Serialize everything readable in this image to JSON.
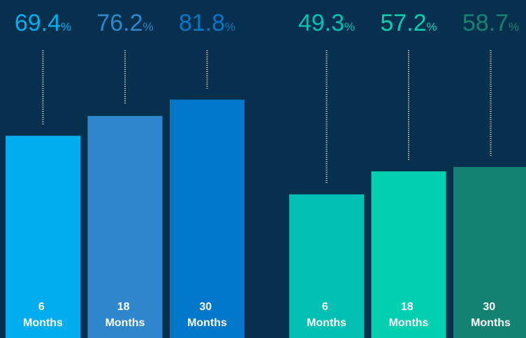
{
  "chart_data": [
    {
      "type": "bar",
      "categories": [
        "6 Months",
        "18 Months",
        "30 Months"
      ],
      "values": [
        69.4,
        76.2,
        81.8
      ],
      "value_labels": [
        "69.4%",
        "76.2%",
        "81.8%"
      ],
      "colors": [
        "#00aeef",
        "#2e87cc",
        "#0077c8"
      ],
      "ylim": [
        0,
        116
      ]
    },
    {
      "type": "bar",
      "categories": [
        "6 Months",
        "18 Months",
        "30 Months"
      ],
      "values": [
        49.3,
        57.2,
        58.7
      ],
      "value_labels": [
        "49.3%",
        "57.2%",
        "58.7%"
      ],
      "colors": [
        "#00bfb3",
        "#00cfb0",
        "#148270"
      ],
      "ylim": [
        0,
        116
      ]
    }
  ]
}
